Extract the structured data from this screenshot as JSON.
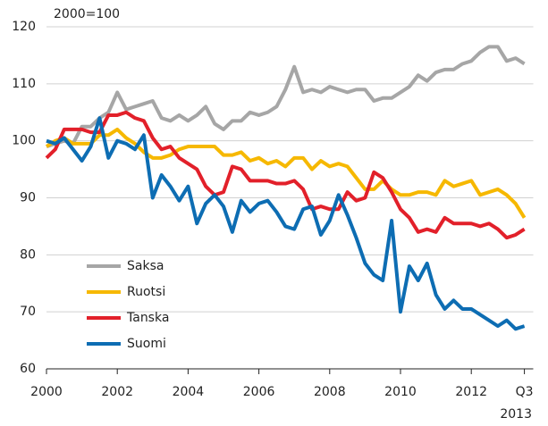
{
  "chart_data": {
    "type": "line",
    "y_unit_label": "2000=100",
    "x": [
      2000,
      2000.25,
      2000.5,
      2000.75,
      2001,
      2001.25,
      2001.5,
      2001.75,
      2002,
      2002.25,
      2002.5,
      2002.75,
      2003,
      2003.25,
      2003.5,
      2003.75,
      2004,
      2004.25,
      2004.5,
      2004.75,
      2005,
      2005.25,
      2005.5,
      2005.75,
      2006,
      2006.25,
      2006.5,
      2006.75,
      2007,
      2007.25,
      2007.5,
      2007.75,
      2008,
      2008.25,
      2008.5,
      2008.75,
      2009,
      2009.25,
      2009.5,
      2009.75,
      2010,
      2010.25,
      2010.5,
      2010.75,
      2011,
      2011.25,
      2011.5,
      2011.75,
      2012,
      2012.25,
      2012.5,
      2012.75,
      2013,
      2013.25,
      2013.5
    ],
    "series": [
      {
        "name": "Saksa",
        "color": "#a6a6a6",
        "values": [
          99,
          99.5,
          100,
          99.5,
          102.5,
          102.5,
          104,
          105,
          108.5,
          105.5,
          106,
          106.5,
          107,
          104,
          103.5,
          104.5,
          103.5,
          104.5,
          106,
          103,
          102,
          103.5,
          103.5,
          105,
          104.5,
          105,
          106,
          109,
          113,
          108.5,
          109,
          108.5,
          109.5,
          109,
          108.5,
          109,
          109,
          107,
          107.5,
          107.5,
          108.5,
          109.5,
          111.5,
          110.5,
          112,
          112.5,
          112.5,
          113.5,
          114,
          115.5,
          116.5,
          116.5,
          114,
          114.5,
          113.5
        ]
      },
      {
        "name": "Ruotsi",
        "color": "#f6b800",
        "values": [
          99,
          100,
          100.5,
          99.5,
          99.5,
          99.5,
          101,
          101,
          102,
          100.5,
          99.5,
          98,
          97,
          97,
          97.5,
          98.5,
          99,
          99,
          99,
          99,
          97.5,
          97.5,
          98,
          96.5,
          97,
          96,
          96.5,
          95.5,
          97,
          97,
          95,
          96.5,
          95.5,
          96,
          95.5,
          93.5,
          91.5,
          91.5,
          93,
          91.5,
          90.5,
          90.5,
          91,
          91,
          90.5,
          93,
          92,
          92.5,
          93,
          90.5,
          91,
          91.5,
          90.5,
          89,
          86.5
        ]
      },
      {
        "name": "Tanska",
        "color": "#e2202a",
        "values": [
          97,
          98.5,
          102,
          102,
          102,
          101.5,
          101.5,
          104.5,
          104.5,
          105,
          104,
          103.5,
          100.5,
          98.5,
          99,
          97,
          96,
          95,
          92,
          90.5,
          91,
          95.5,
          95,
          93,
          93,
          93,
          92.5,
          92.5,
          93,
          91.5,
          88,
          88.5,
          88,
          88,
          91,
          89.5,
          90,
          94.5,
          93.5,
          91,
          88,
          86.5,
          84,
          84.5,
          84,
          86.5,
          85.5,
          85.5,
          85.5,
          85,
          85.5,
          84.5,
          83,
          83.5,
          84.5
        ]
      },
      {
        "name": "Suomi",
        "color": "#0d6db3",
        "values": [
          100,
          99.5,
          100.5,
          98.5,
          96.5,
          99,
          104,
          97,
          100,
          99.5,
          98.5,
          101,
          90,
          94,
          92,
          89.5,
          92,
          85.5,
          89,
          90.5,
          88.5,
          84,
          89.5,
          87.5,
          89,
          89.5,
          87.5,
          85,
          84.5,
          88,
          88.5,
          83.5,
          86,
          90.5,
          87,
          83,
          78.5,
          76.5,
          75.5,
          86,
          70,
          78,
          75.5,
          78.5,
          73,
          70.5,
          72,
          70.5,
          70.5,
          69.5,
          68.5,
          67.5,
          68.5,
          67,
          67.5
        ]
      }
    ],
    "xlim": [
      2000,
      2013.75
    ],
    "xticks": [
      2000,
      2002,
      2004,
      2006,
      2008,
      2010,
      2012,
      {
        "value": 2013.5,
        "label": "Q3"
      }
    ],
    "x_annotation": "2013",
    "ylim": [
      60,
      120
    ],
    "yticks": [
      60,
      70,
      80,
      90,
      100,
      110,
      120
    ],
    "grid": true
  }
}
